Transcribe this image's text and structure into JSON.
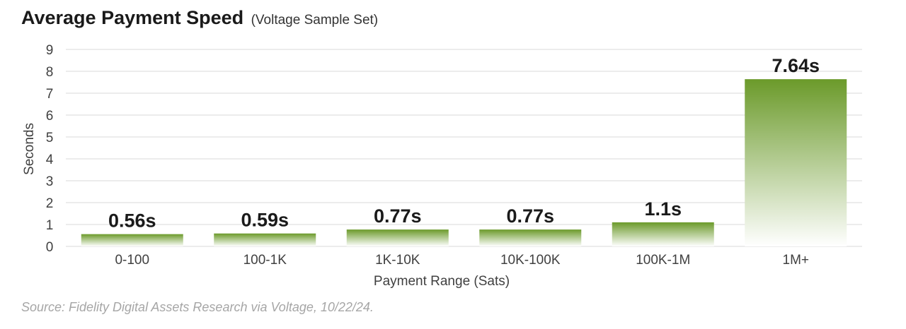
{
  "header": {
    "title": "Average Payment Speed",
    "subtitle": "(Voltage Sample Set)"
  },
  "chart_data": {
    "type": "bar",
    "title": "Average Payment Speed",
    "subtitle": "(Voltage Sample Set)",
    "xlabel": "Payment Range (Sats)",
    "ylabel": "Seconds",
    "categories": [
      "0-100",
      "100-1K",
      "1K-10K",
      "10K-100K",
      "100K-1M",
      "1M+"
    ],
    "values": [
      0.56,
      0.59,
      0.77,
      0.77,
      1.1,
      7.64
    ],
    "data_labels": [
      "0.56s",
      "0.59s",
      "0.77s",
      "0.77s",
      "1.1s",
      "7.64s"
    ],
    "yticks": [
      "0",
      "1",
      "2",
      "3",
      "4",
      "5",
      "6",
      "7",
      "8",
      "9"
    ],
    "ylim": [
      0,
      9
    ],
    "grid": true,
    "legend": "none",
    "colors": {
      "bar_top": "#6b9a2a",
      "bar_bottom": "#ffffff",
      "grid": "#d9d9d9",
      "text": "#1a1a1a",
      "axis_text": "#404040"
    }
  },
  "footer": {
    "source": "Source: Fidelity Digital Assets Research via Voltage, 10/22/24."
  }
}
